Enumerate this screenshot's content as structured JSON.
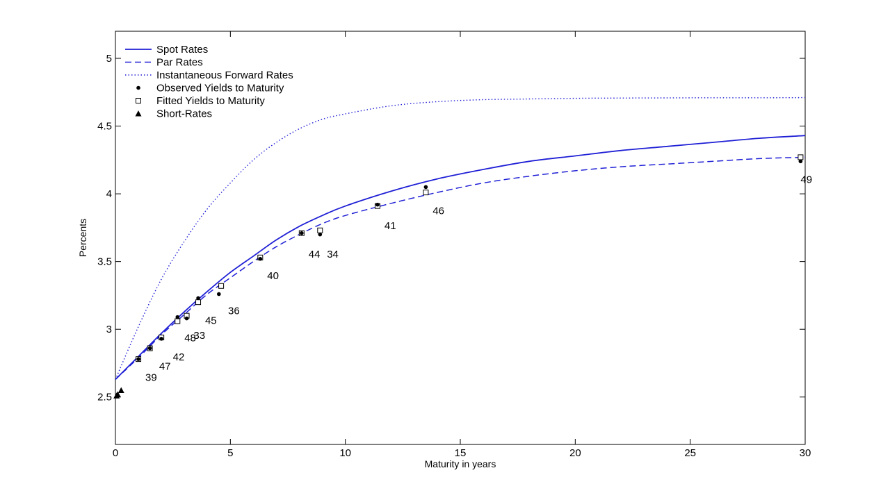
{
  "chart_data": {
    "type": "line",
    "xlabel": "Maturity in years",
    "ylabel": "Percents",
    "xlim": [
      0,
      30
    ],
    "ylim": [
      2.15,
      5.2
    ],
    "xticks": [
      "0",
      "5",
      "10",
      "15",
      "20",
      "25",
      "30"
    ],
    "yticks": [
      "2.5",
      "3",
      "3.5",
      "4",
      "4.5",
      "5"
    ],
    "legend_position": "top-left",
    "grid": false,
    "colors": {
      "curve": "#1f1fd6",
      "marker": "#000000"
    },
    "legend": [
      {
        "label": "Spot Rates",
        "style": "solid"
      },
      {
        "label": "Par Rates",
        "style": "dashed"
      },
      {
        "label": "Instantaneous Forward Rates",
        "style": "dotted"
      },
      {
        "label": "Observed Yields to Maturity",
        "style": "dot"
      },
      {
        "label": "Fitted Yields to Maturity",
        "style": "square"
      },
      {
        "label": "Short-Rates",
        "style": "triangle"
      }
    ],
    "curves": {
      "spot": {
        "x": [
          0,
          1,
          2,
          3,
          4,
          5,
          6,
          7,
          8,
          9,
          10,
          12,
          14,
          16,
          18,
          20,
          22,
          24,
          26,
          28,
          30
        ],
        "y": [
          2.63,
          2.8,
          2.97,
          3.13,
          3.28,
          3.42,
          3.54,
          3.66,
          3.76,
          3.84,
          3.91,
          4.02,
          4.11,
          4.18,
          4.24,
          4.28,
          4.32,
          4.35,
          4.38,
          4.41,
          4.43
        ]
      },
      "par": {
        "x": [
          0,
          1,
          2,
          3,
          4,
          5,
          6,
          7,
          8,
          9,
          10,
          12,
          14,
          16,
          18,
          20,
          22,
          24,
          26,
          28,
          30
        ],
        "y": [
          2.63,
          2.79,
          2.96,
          3.11,
          3.26,
          3.38,
          3.5,
          3.61,
          3.7,
          3.78,
          3.84,
          3.93,
          4.01,
          4.08,
          4.13,
          4.17,
          4.2,
          4.22,
          4.24,
          4.26,
          4.27
        ]
      },
      "forward": {
        "x": [
          0,
          1,
          2,
          3,
          4,
          5,
          6,
          7,
          8,
          9,
          10,
          12,
          14,
          16,
          18,
          20,
          22,
          24,
          26,
          28,
          30
        ],
        "y": [
          2.63,
          3.02,
          3.37,
          3.65,
          3.89,
          4.08,
          4.25,
          4.38,
          4.48,
          4.55,
          4.59,
          4.65,
          4.68,
          4.695,
          4.7,
          4.705,
          4.707,
          4.708,
          4.709,
          4.709,
          4.71
        ]
      }
    },
    "observed": [
      {
        "x": 1.0,
        "y": 2.78
      },
      {
        "x": 1.5,
        "y": 2.86
      },
      {
        "x": 2.0,
        "y": 2.93
      },
      {
        "x": 2.7,
        "y": 3.09
      },
      {
        "x": 3.1,
        "y": 3.08
      },
      {
        "x": 3.6,
        "y": 3.23
      },
      {
        "x": 4.5,
        "y": 3.26
      },
      {
        "x": 6.3,
        "y": 3.52
      },
      {
        "x": 8.1,
        "y": 3.71
      },
      {
        "x": 8.9,
        "y": 3.7
      },
      {
        "x": 11.4,
        "y": 3.92
      },
      {
        "x": 13.5,
        "y": 4.05
      },
      {
        "x": 29.8,
        "y": 4.24
      }
    ],
    "fitted": [
      {
        "x": 1.0,
        "y": 2.78
      },
      {
        "x": 1.5,
        "y": 2.86
      },
      {
        "x": 2.0,
        "y": 2.94
      },
      {
        "x": 2.7,
        "y": 3.06
      },
      {
        "x": 3.1,
        "y": 3.1
      },
      {
        "x": 3.6,
        "y": 3.2
      },
      {
        "x": 4.6,
        "y": 3.32
      },
      {
        "x": 6.3,
        "y": 3.53
      },
      {
        "x": 8.1,
        "y": 3.71
      },
      {
        "x": 8.9,
        "y": 3.73
      },
      {
        "x": 11.4,
        "y": 3.91
      },
      {
        "x": 13.5,
        "y": 4.01
      },
      {
        "x": 29.8,
        "y": 4.27
      }
    ],
    "short_rates": [
      {
        "x": 0.05,
        "y": 2.51
      },
      {
        "x": 0.1,
        "y": 2.52
      },
      {
        "x": 0.25,
        "y": 2.55
      }
    ],
    "annotations": [
      {
        "text": "39",
        "x": 1.3,
        "y": 2.62
      },
      {
        "text": "47",
        "x": 1.9,
        "y": 2.7
      },
      {
        "text": "42",
        "x": 2.5,
        "y": 2.77
      },
      {
        "text": "48",
        "x": 3.0,
        "y": 2.91
      },
      {
        "text": "33",
        "x": 3.4,
        "y": 2.93
      },
      {
        "text": "45",
        "x": 3.9,
        "y": 3.04
      },
      {
        "text": "36",
        "x": 4.9,
        "y": 3.11
      },
      {
        "text": "40",
        "x": 6.6,
        "y": 3.37
      },
      {
        "text": "44",
        "x": 8.4,
        "y": 3.53
      },
      {
        "text": "34",
        "x": 9.2,
        "y": 3.53
      },
      {
        "text": "41",
        "x": 11.7,
        "y": 3.74
      },
      {
        "text": "46",
        "x": 13.8,
        "y": 3.85
      },
      {
        "text": "49",
        "x": 29.8,
        "y": 4.08
      }
    ]
  }
}
